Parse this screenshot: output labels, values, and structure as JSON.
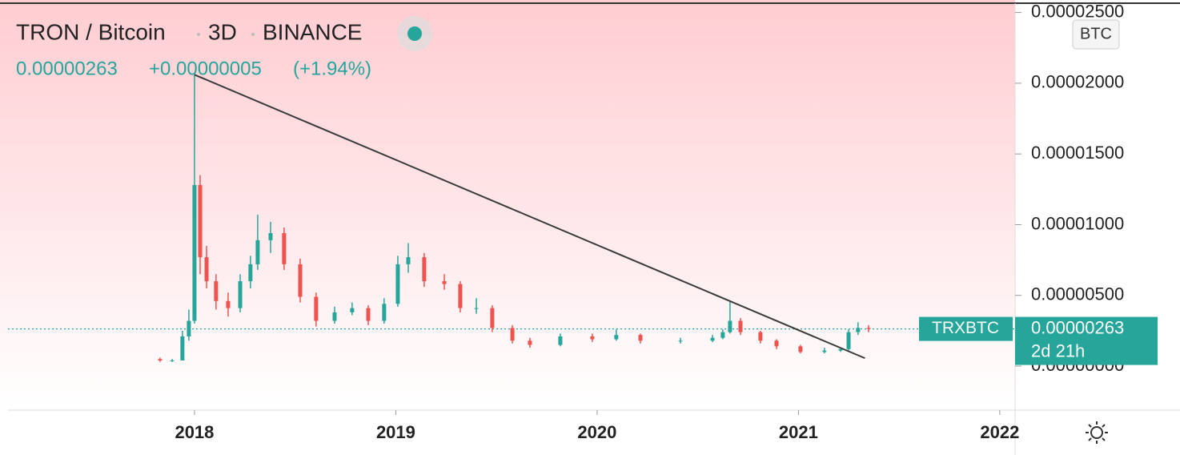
{
  "chart_data": {
    "type": "candlestick",
    "title": "TRON / Bitcoin",
    "interval": "3D",
    "exchange": "BINANCE",
    "symbol": "TRXBTC",
    "currency": "BTC",
    "countdown": "2d 21h",
    "last": {
      "value": 2.63e-06,
      "label": "0.00000263"
    },
    "change": {
      "value": 5e-08,
      "label": "+0.00000005"
    },
    "change_pct": {
      "value": 1.94,
      "label": "(+1.94%)"
    },
    "up_color": "#26a69a",
    "down_color": "#ef5350",
    "trendline_color": "#3a3a3a",
    "xlim": [
      2017.034,
      2022.076
    ],
    "xticks": [
      2018,
      2019,
      2020,
      2021,
      2022
    ],
    "ylim": [
      -3e-06,
      2.56e-05
    ],
    "yticks": [
      {
        "value": 0,
        "label": "0.00000000"
      },
      {
        "value": 5e-06,
        "label": "0.00000500"
      },
      {
        "value": 1e-05,
        "label": "0.00001000"
      },
      {
        "value": 1.5e-05,
        "label": "0.00001500"
      },
      {
        "value": 2e-05,
        "label": "0.00002000"
      },
      {
        "value": 2.5e-05,
        "label": "0.00002500"
      }
    ],
    "trendline": {
      "x": [
        2018.0,
        2021.33
      ],
      "y": [
        2.06e-05,
        5.6e-07
      ]
    },
    "x": [
      2017.829,
      2017.889,
      2017.94,
      2017.972,
      2018.0,
      2018.028,
      2018.06,
      2018.107,
      2018.167,
      2018.227,
      2018.278,
      2018.314,
      2018.378,
      2018.445,
      2018.525,
      2018.604,
      2018.696,
      2018.783,
      2018.863,
      2018.942,
      2019.01,
      2019.062,
      2019.141,
      2019.241,
      2019.32,
      2019.4,
      2019.479,
      2019.579,
      2019.666,
      2019.817,
      2019.976,
      2020.095,
      2020.215,
      2020.414,
      2020.573,
      2020.624,
      2020.66,
      2020.712,
      2020.811,
      2020.891,
      2021.01,
      2021.129,
      2021.209,
      2021.249,
      2021.296,
      2021.348
    ],
    "open": [
      5e-07,
      4e-07,
      4e-07,
      2.1e-06,
      3.2e-06,
      1.28e-05,
      7.7e-06,
      6e-06,
      4.6e-06,
      4.1e-06,
      6e-06,
      7.2e-06,
      8.9e-06,
      9.4e-06,
      7.2e-06,
      4.9e-06,
      3.2e-06,
      3.8e-06,
      4.1e-06,
      3.2e-06,
      4.4e-06,
      7.2e-06,
      7.7e-06,
      6e-06,
      5.8e-06,
      4.1e-06,
      4.1e-06,
      2.7e-06,
      1.8e-06,
      1.5e-06,
      2.1e-06,
      1.9e-06,
      2.2e-06,
      1.8e-06,
      1.8e-06,
      2e-06,
      2.4e-06,
      3.2e-06,
      2.4e-06,
      1.8e-06,
      1.4e-06,
      1e-06,
      1.1e-06,
      1.2e-06,
      2.4e-06,
      2.7e-06
    ],
    "high": [
      6e-07,
      5e-07,
      2.5e-06,
      4e-06,
      2.06e-05,
      1.35e-05,
      8.5e-06,
      6.5e-06,
      5.2e-06,
      6.5e-06,
      7.8e-06,
      1.07e-05,
      1.02e-05,
      9.8e-06,
      7.6e-06,
      5.2e-06,
      4.2e-06,
      4.5e-06,
      4.3e-06,
      4.8e-06,
      7.8e-06,
      8.7e-06,
      8e-06,
      6.5e-06,
      6e-06,
      4.8e-06,
      4.3e-06,
      2.9e-06,
      2e-06,
      2.3e-06,
      2.3e-06,
      2.6e-06,
      2.3e-06,
      2e-06,
      2.2e-06,
      2.6e-06,
      4.6e-06,
      3.4e-06,
      2.5e-06,
      1.9e-06,
      1.5e-06,
      1.3e-06,
      1.3e-06,
      2.6e-06,
      3.1e-06,
      2.9e-06
    ],
    "low": [
      3e-07,
      3e-07,
      4e-07,
      1.8e-06,
      3e-06,
      6.5e-06,
      5.5e-06,
      4e-06,
      3.5e-06,
      3.8e-06,
      5.5e-06,
      6.8e-06,
      8e-06,
      6.8e-06,
      4.5e-06,
      2.8e-06,
      3e-06,
      3.6e-06,
      2.9e-06,
      3e-06,
      4.2e-06,
      6.6e-06,
      5.6e-06,
      5.4e-06,
      3.8e-06,
      3.7e-06,
      2.4e-06,
      1.6e-06,
      1.3e-06,
      1.4e-06,
      1.7e-06,
      1.8e-06,
      1.6e-06,
      1.6e-06,
      1.7e-06,
      1.9e-06,
      2.3e-06,
      2.2e-06,
      1.6e-06,
      1.2e-06,
      9e-07,
      9e-07,
      1e-06,
      1.1e-06,
      2.2e-06,
      2.4e-06
    ],
    "close": [
      4e-07,
      4e-07,
      2.1e-06,
      3.2e-06,
      1.28e-05,
      7.7e-06,
      6e-06,
      4.6e-06,
      4.1e-06,
      6e-06,
      7.2e-06,
      8.9e-06,
      9.4e-06,
      7.2e-06,
      4.9e-06,
      3.2e-06,
      3.8e-06,
      4.1e-06,
      3.2e-06,
      4.4e-06,
      7.2e-06,
      7.7e-06,
      6e-06,
      5.8e-06,
      4.1e-06,
      4.1e-06,
      2.7e-06,
      1.8e-06,
      1.5e-06,
      2.1e-06,
      1.9e-06,
      2.2e-06,
      1.8e-06,
      1.8e-06,
      2e-06,
      2.4e-06,
      3.2e-06,
      2.4e-06,
      1.8e-06,
      1.4e-06,
      1e-06,
      1.1e-06,
      1.2e-06,
      2.4e-06,
      2.7e-06,
      2.63e-06
    ]
  }
}
